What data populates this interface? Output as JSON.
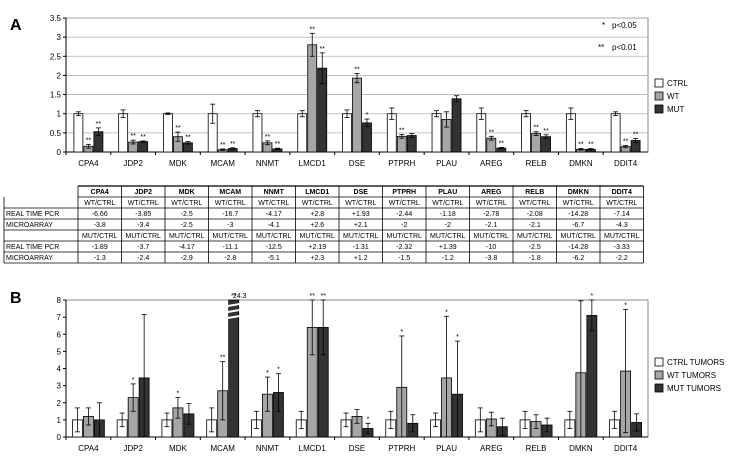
{
  "panels": [
    {
      "letter": "A",
      "chart_data": {
        "type": "bar",
        "categories": [
          "CPA4",
          "JDP2",
          "MDK",
          "MCAM",
          "NNMT",
          "LMCD1",
          "DSE",
          "PTPRH",
          "PLAU",
          "AREG",
          "RELB",
          "DMKN",
          "DDIT4"
        ],
        "ylim": [
          0,
          3.5
        ],
        "yticks": [
          0,
          0.5,
          1,
          1.5,
          2,
          2.5,
          3,
          3.5
        ],
        "grid": true,
        "legend_position": "right",
        "series": [
          {
            "name": "CTRL",
            "color": "#ffffff",
            "values": [
              1,
              1,
              1,
              1,
              1,
              1,
              1,
              1,
              1,
              1,
              1,
              1,
              1
            ],
            "errors": [
              0.05,
              0.1,
              0.02,
              0.25,
              0.08,
              0.08,
              0.1,
              0.15,
              0.08,
              0.15,
              0.08,
              0.15,
              0.05
            ],
            "stars": [
              "",
              "",
              "",
              "",
              "",
              "",
              "",
              "",
              "",
              "",
              "",
              "",
              ""
            ]
          },
          {
            "name": "WT",
            "color": "#a6a6a6",
            "values": [
              0.15,
              0.26,
              0.4,
              0.06,
              0.24,
              2.8,
              1.93,
              0.41,
              0.85,
              0.36,
              0.48,
              0.07,
              0.14
            ],
            "errors": [
              0.05,
              0.05,
              0.12,
              0.02,
              0.05,
              0.3,
              0.12,
              0.05,
              0.2,
              0.05,
              0.05,
              0.02,
              0.03
            ],
            "stars": [
              "**",
              "**",
              "**",
              "**",
              "**",
              "**",
              "**",
              "**",
              "",
              "**",
              "**",
              "**",
              "**"
            ]
          },
          {
            "name": "MUT",
            "color": "#333333",
            "values": [
              0.53,
              0.27,
              0.24,
              0.09,
              0.08,
              2.19,
              0.76,
              0.43,
              1.39,
              0.1,
              0.4,
              0.07,
              0.3
            ],
            "errors": [
              0.1,
              0.02,
              0.03,
              0.02,
              0.02,
              0.4,
              0.1,
              0.05,
              0.08,
              0.02,
              0.05,
              0.02,
              0.05
            ],
            "stars": [
              "**",
              "**",
              "**",
              "**",
              "**",
              "**",
              "*",
              "",
              "",
              "**",
              "**",
              "**",
              "**"
            ]
          }
        ]
      }
    },
    {
      "letter": "B",
      "chart_data": {
        "type": "bar",
        "categories": [
          "CPA4",
          "JDP2",
          "MDK",
          "MCAM",
          "NNMT",
          "LMCD1",
          "DSE",
          "PTPRH",
          "PLAU",
          "AREG",
          "RELB",
          "DMKN",
          "DDIT4"
        ],
        "ylim": [
          0,
          8
        ],
        "yticks": [
          0,
          1,
          2,
          3,
          4,
          5,
          6,
          7,
          8
        ],
        "grid": false,
        "legend_position": "right",
        "axis_break_label": "24.3",
        "axis_break_category": "MCAM",
        "series": [
          {
            "name": "CTRL TUMORS",
            "color": "#ffffff",
            "values": [
              1,
              1,
              1,
              1,
              1,
              1,
              1,
              1,
              1,
              1,
              1,
              1,
              1
            ],
            "errors": [
              0.7,
              0.4,
              0.4,
              0.7,
              0.5,
              0.5,
              0.4,
              0.5,
              0.4,
              0.7,
              0.5,
              0.5,
              0.5
            ],
            "stars": [
              "",
              "",
              "",
              "",
              "",
              "",
              "",
              "",
              "",
              "",
              "",
              "",
              ""
            ]
          },
          {
            "name": "WT TUMORS",
            "color": "#a6a6a6",
            "values": [
              1.2,
              2.3,
              1.7,
              2.7,
              2.5,
              6.4,
              1.2,
              2.9,
              3.45,
              1.05,
              0.9,
              3.75,
              3.85
            ],
            "errors": [
              0.5,
              0.8,
              0.6,
              1.7,
              1.0,
              1.6,
              0.4,
              3.0,
              3.6,
              0.4,
              0.4,
              4.2,
              3.6
            ],
            "stars": [
              "",
              "*",
              "*",
              "**",
              "*",
              "**",
              "",
              "*",
              "*",
              "",
              "",
              "",
              "*"
            ]
          },
          {
            "name": "MUT TUMORS",
            "color": "#333333",
            "values": [
              1.0,
              3.45,
              1.35,
              8.0,
              2.6,
              6.4,
              0.5,
              0.8,
              2.5,
              0.6,
              0.7,
              7.1,
              0.85
            ],
            "errors": [
              1.0,
              3.7,
              0.6,
              0.0,
              1.1,
              1.6,
              0.3,
              0.5,
              3.1,
              0.5,
              0.4,
              0.9,
              0.5
            ],
            "stars": [
              "",
              "",
              "",
              "**",
              "*",
              "**",
              "*",
              "",
              "*",
              "",
              "",
              "*",
              ""
            ]
          }
        ]
      }
    }
  ],
  "significance_legend": [
    {
      "symbol": "*",
      "text": "p<0.05"
    },
    {
      "symbol": "**",
      "text": "p<0.01"
    }
  ],
  "table": {
    "genes": [
      "CPA4",
      "JDP2",
      "MDK",
      "MCAM",
      "NNMT",
      "LMCD1",
      "DSE",
      "PTPRH",
      "PLAU",
      "AREG",
      "RELB",
      "DMKN",
      "DDIT4"
    ],
    "rows": [
      {
        "label": "",
        "cells": [
          "WT/CTRL",
          "WT/CTRL",
          "WT/CTRL",
          "WT/CTRL",
          "WT/CTRL",
          "WT/CTRL",
          "WT/CTRL",
          "WT/CTRL",
          "WT/CTRL",
          "WT/CTRL",
          "WT/CTRL",
          "WT/CTRL",
          "WT/CTRL"
        ]
      },
      {
        "label": "REAL TIME PCR",
        "cells": [
          "-6.66",
          "-3.85",
          "-2.5",
          "-16.7",
          "-4.17",
          "+2.8",
          "+1.93",
          "-2.44",
          "-1.18",
          "-2.78",
          "-2.08",
          "-14.28",
          "-7.14"
        ]
      },
      {
        "label": "MICROARRAY",
        "cells": [
          "-3.8",
          "-3.4",
          "-2.5",
          "-3",
          "-4.1",
          "+2.6",
          "+2.1",
          "-2",
          "-2",
          "-2.1",
          "-2.1",
          "-6.7",
          "-4.3"
        ]
      },
      {
        "label": "",
        "cells": [
          "MUT/CTRL",
          "MUT/CTRL",
          "MUT/CTRL",
          "MUT/CTRL",
          "MUT/CTRL",
          "MUT/CTRL",
          "MUT/CTRL",
          "MUT/CTRL",
          "MUT/CTRL",
          "MUT/CTRL",
          "MUT/CTRL",
          "MUT/CTRL",
          "MUT/CTRL"
        ]
      },
      {
        "label": "REAL TIME PCR",
        "cells": [
          "-1.89",
          "-3.7",
          "-4.17",
          "-11.1",
          "-12.5",
          "+2.19",
          "-1.31",
          "-2.32",
          "+1.39",
          "-10",
          "-2.5",
          "-14.28",
          "-3.33"
        ]
      },
      {
        "label": "MICROARRAY",
        "cells": [
          "-1.3",
          "-2.4",
          "-2.9",
          "-2.8",
          "-5.1",
          "+2.3",
          "+1.2",
          "-1.5",
          "-1.2",
          "-3.8",
          "-1.8",
          "-6.2",
          "-2.2"
        ]
      }
    ]
  }
}
